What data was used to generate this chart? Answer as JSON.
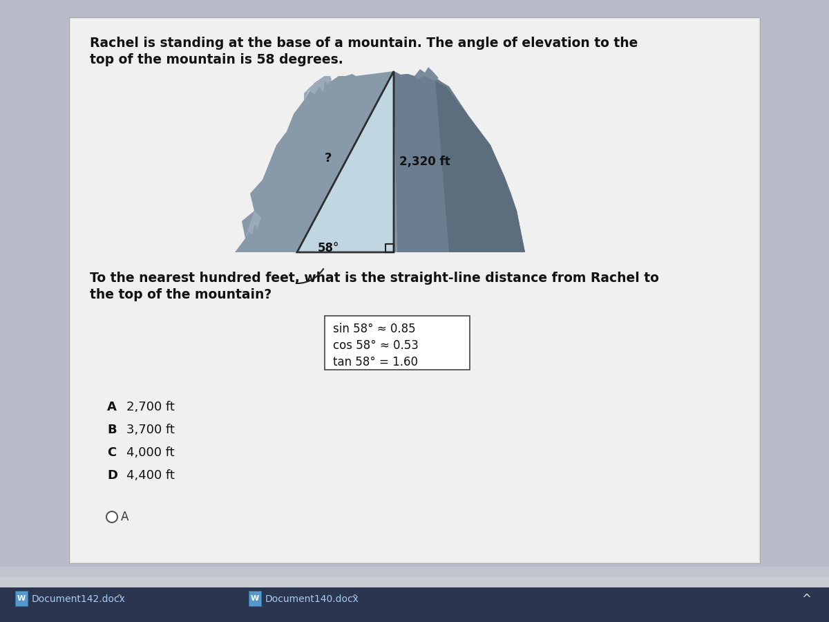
{
  "bg_outer_top": "#c8ccd4",
  "bg_outer_bot": "#3a4560",
  "panel_color": "#e8eaec",
  "title_text_line1": "Rachel is standing at the base of a mountain. The angle of elevation to the",
  "title_text_line2": "top of the mountain is 58 degrees.",
  "question_line1": "To the nearest hundred feet, what is the straight-line distance from Rachel to",
  "question_line2": "the top of the mountain?",
  "trig_lines": [
    "sin 58° ≈ 0.85",
    "cos 58° ≈ 0.53",
    "tan 58° = 1.60"
  ],
  "choices": [
    {
      "letter": "A",
      "text": "2,700 ft"
    },
    {
      "letter": "B",
      "text": "3,700 ft"
    },
    {
      "letter": "C",
      "text": "4,000 ft"
    },
    {
      "letter": "D",
      "text": "4,400 ft"
    }
  ],
  "selected_answer": "A",
  "mountain_color": "#8899aa",
  "mountain_dark": "#6677888",
  "triangle_fill": "#c5dde8",
  "triangle_edge": "#222222",
  "angle_label": "58°",
  "hyp_label": "?",
  "vert_label": "2,320 ft",
  "footer_left": "Document142.docx",
  "footer_right": "Document140.docx",
  "taskbar_color": "#c8ccd4",
  "taskbar_dark": "#2a3550"
}
